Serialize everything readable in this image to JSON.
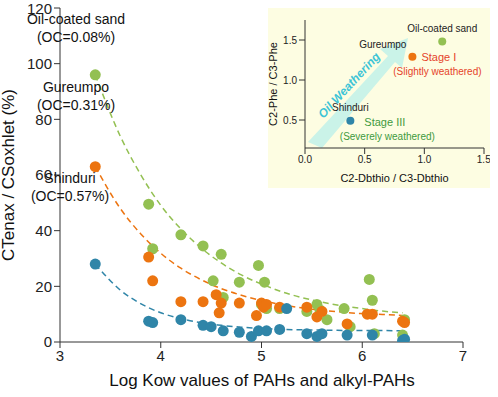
{
  "chart_data": [
    {
      "type": "scatter",
      "x_label": "Log Kow values of PAHs and alkyl-PAHs",
      "y_label": "CTenax / CSoxhlet (%)",
      "xlim": [
        3,
        7
      ],
      "ylim": [
        0,
        120
      ],
      "xticks": [
        3,
        4,
        5,
        6,
        7
      ],
      "yticks": [
        0,
        20,
        40,
        60,
        80,
        100,
        120
      ],
      "series": [
        {
          "name": "Oil-coated sand",
          "label": "(OC=0.08%)",
          "color": "#93c052",
          "x": [
            3.35,
            3.88,
            3.92,
            4.2,
            4.42,
            4.52,
            4.6,
            4.62,
            4.78,
            4.97,
            5.0,
            5.03,
            5.05,
            5.18,
            5.45,
            5.55,
            5.58,
            5.65,
            5.82,
            5.88,
            6.07,
            6.1,
            6.12,
            6.4,
            6.42
          ],
          "values": [
            96,
            49.5,
            33.5,
            38.5,
            34.5,
            22,
            31.5,
            16,
            21.5,
            27.5,
            13.5,
            21.5,
            12,
            12,
            11,
            13.5,
            11.5,
            8,
            12,
            5.5,
            22.5,
            15,
            3,
            2.5,
            8
          ],
          "fit": {
            "line_style": "dashed",
            "x": [
              3.35,
              3.6,
              3.8,
              4.0,
              4.2,
              4.4,
              4.6,
              4.8,
              5.0,
              5.25,
              5.5,
              5.75,
              6.0,
              6.2,
              6.4
            ],
            "values": [
              96,
              73.8,
              60.2,
              49.1,
              40.6,
              33.8,
              28.4,
              24.1,
              20.8,
              17.5,
              15.1,
              13.3,
              12,
              11.1,
              10.5
            ]
          }
        },
        {
          "name": "Gureumpo",
          "label": "(OC=0.31%)",
          "color": "#ec7410",
          "x": [
            3.35,
            3.88,
            3.92,
            4.2,
            4.42,
            4.55,
            4.58,
            4.6,
            4.78,
            4.95,
            5.0,
            5.02,
            5.05,
            5.18,
            5.45,
            5.55,
            5.6,
            5.85,
            6.05,
            6.1,
            6.4,
            6.42
          ],
          "values": [
            63,
            30.5,
            22,
            14.5,
            14.5,
            17,
            10.5,
            14,
            14,
            9.5,
            14,
            12.5,
            13.5,
            12.5,
            12.5,
            9,
            11,
            6.5,
            10,
            10,
            7.5,
            7
          ],
          "fit": {
            "line_style": "dashed",
            "x": [
              3.35,
              3.6,
              3.8,
              4.0,
              4.2,
              4.4,
              4.6,
              4.8,
              5.0,
              5.25,
              5.5,
              5.75,
              6.0,
              6.2,
              6.4
            ],
            "values": [
              63,
              47.9,
              38.9,
              31.9,
              26.5,
              22.4,
              19.2,
              16.8,
              14.9,
              13.1,
              11.8,
              10.9,
              10.2,
              9.9,
              9.5
            ]
          }
        },
        {
          "name": "Shinduri",
          "label": "(OC=0.57%)",
          "color": "#2f85a8",
          "x": [
            3.35,
            3.88,
            3.92,
            4.2,
            4.42,
            4.5,
            4.62,
            4.78,
            4.9,
            4.97,
            5.05,
            5.18,
            5.25,
            5.45,
            5.55,
            5.6,
            5.85,
            6.1,
            6.4,
            6.42
          ],
          "values": [
            28,
            7.5,
            7,
            8,
            6,
            5.5,
            4,
            3.5,
            2,
            4,
            4,
            4.5,
            12,
            3,
            2,
            3,
            2.5,
            2.5,
            0.5,
            1
          ],
          "fit": {
            "line_style": "dashed",
            "x": [
              3.35,
              3.6,
              3.8,
              4.0,
              4.2,
              4.4,
              4.6,
              4.8,
              5.0,
              5.25,
              5.5,
              5.75,
              6.0,
              6.2,
              6.4
            ],
            "values": [
              28,
              18.6,
              13.8,
              10.5,
              8.4,
              6.9,
              6.0,
              5.3,
              4.9,
              4.5,
              4.3,
              4.2,
              4.1,
              4.1,
              4.0
            ]
          }
        }
      ]
    },
    {
      "type": "scatter",
      "x_label": "C2-Dbthio / C3-Dbthio",
      "y_label": "C2-Phe / C3-Phe",
      "annotation": "Oil Weathering",
      "xlim": [
        0,
        1.5
      ],
      "ylim": [
        0.15,
        1.75
      ],
      "xticks": [
        {
          "value": 0,
          "label": "0.0"
        },
        {
          "value": 0.5,
          "label": "0.5"
        },
        {
          "value": 1,
          "label": "1.0"
        },
        {
          "value": 1.5,
          "label": "1.5"
        }
      ],
      "yticks": [
        {
          "value": 0.5,
          "label": "0.5"
        },
        {
          "value": 1,
          "label": "1.0"
        },
        {
          "value": 1.5,
          "label": "1.5"
        }
      ],
      "series": [
        {
          "name": "Oil-coated sand",
          "color": "#93c052",
          "x": [
            1.15
          ],
          "values": [
            1.48
          ]
        },
        {
          "name": "Gureumpo",
          "color": "#ec7410",
          "x": [
            0.9
          ],
          "values": [
            1.29
          ],
          "stage": {
            "text": "Stage I",
            "note": "(Slightly weathered)",
            "color": "#e5432a"
          }
        },
        {
          "name": "Shinduri",
          "color": "#2f85a8",
          "x": [
            0.38
          ],
          "values": [
            0.49
          ],
          "stage": {
            "text": "Stage III",
            "note": "(Severely weathered)",
            "color": "#3e9a3e"
          }
        }
      ]
    }
  ]
}
